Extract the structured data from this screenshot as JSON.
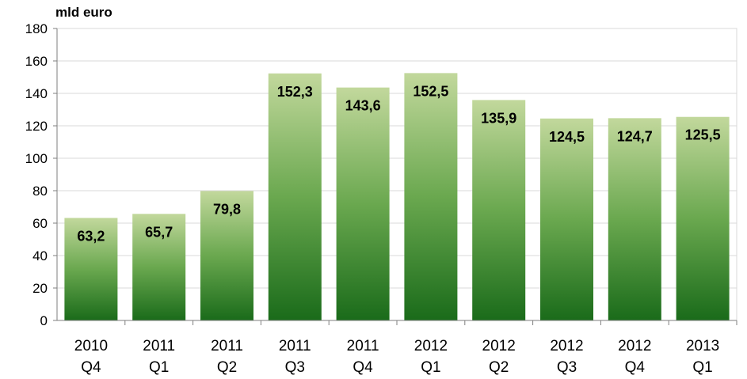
{
  "chart_data": {
    "type": "bar",
    "unit_label": "mld euro",
    "categories": [
      [
        "2010",
        "Q4"
      ],
      [
        "2011",
        "Q1"
      ],
      [
        "2011",
        "Q2"
      ],
      [
        "2011",
        "Q3"
      ],
      [
        "2011",
        "Q4"
      ],
      [
        "2012",
        "Q1"
      ],
      [
        "2012",
        "Q2"
      ],
      [
        "2012",
        "Q3"
      ],
      [
        "2012",
        "Q4"
      ],
      [
        "2013",
        "Q1"
      ]
    ],
    "values": [
      63.2,
      65.7,
      79.8,
      152.3,
      143.6,
      152.5,
      135.9,
      124.5,
      124.7,
      125.5
    ],
    "value_labels": [
      "63,2",
      "65,7",
      "79,8",
      "152,3",
      "143,6",
      "152,5",
      "135,9",
      "124,5",
      "124,7",
      "125,5"
    ],
    "yticks": [
      "0",
      "20",
      "40",
      "60",
      "80",
      "100",
      "120",
      "140",
      "160",
      "180"
    ],
    "ylim": [
      0,
      180
    ],
    "grid": true,
    "legend": "none",
    "colors": {
      "bar_top": "#c2d89c",
      "bar_mid": "#6aa84f",
      "bar_bottom": "#1a6b1a",
      "grid": "#d9d9d9",
      "axis": "#7f7f7f"
    }
  }
}
